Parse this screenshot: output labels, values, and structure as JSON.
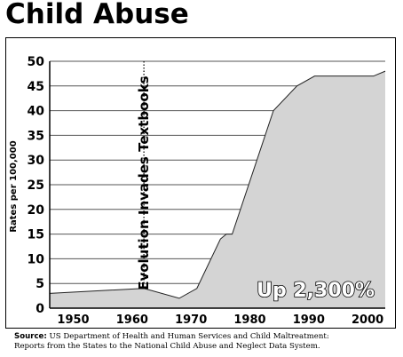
{
  "chart_data": {
    "type": "area",
    "title": "Child Abuse",
    "ylabel": "Rates per 100,000",
    "xlabel": "",
    "xlim": [
      1946,
      2003
    ],
    "ylim": [
      0,
      50
    ],
    "x_ticks": [
      1950,
      1960,
      1970,
      1980,
      1990,
      2000
    ],
    "y_ticks": [
      0,
      5,
      10,
      15,
      20,
      25,
      30,
      35,
      40,
      45,
      50
    ],
    "grid": "horizontal",
    "fill_color": "#d4d4d4",
    "series": [
      {
        "x": [
          1946,
          1962,
          1968,
          1971,
          1975,
          1976,
          1977,
          1984,
          1988,
          1991,
          2000,
          2001,
          2003
        ],
        "y": [
          3,
          4,
          2,
          4,
          14,
          15,
          15,
          40,
          45,
          47,
          47,
          47,
          48
        ]
      }
    ],
    "annotations": [
      {
        "text": "Evolution Invades Textbooks",
        "x": 1962,
        "kind": "vertical-dotted-line"
      },
      {
        "text": "Up 2,300%",
        "kind": "callout",
        "position": "bottom-right"
      }
    ],
    "source_label": "Source:",
    "source_text_1": "US Department of Health and Human Services and Child Maltreatment:",
    "source_text_2": "Reports from the States to the National Child Abuse and Neglect Data System."
  }
}
